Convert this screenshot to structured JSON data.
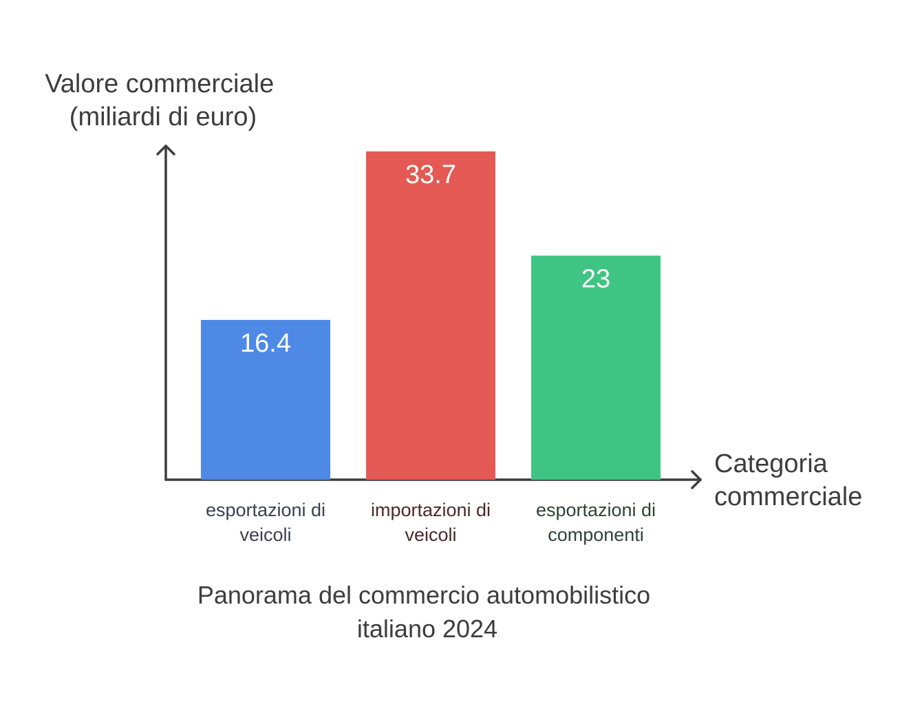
{
  "chart_data": {
    "type": "bar",
    "title": "Panorama del commercio automobilistico italiano 2024",
    "ylabel": "Valore commerciale (miliardi di euro)",
    "xlabel": "Categoria commerciale",
    "categories": [
      "esportazioni di veicoli",
      "importazioni di veicoli",
      "esportazioni di componenti"
    ],
    "values": [
      16.4,
      33.7,
      23
    ],
    "value_labels": [
      "16.4",
      "33.7",
      "23"
    ],
    "colors": [
      "#4e89e6",
      "#e45954",
      "#3ec583"
    ],
    "label_colors": [
      "#3a4150",
      "#4a2a2a",
      "#2f4338"
    ],
    "ylim": [
      0,
      33.7
    ],
    "grid": false,
    "legend": "none"
  }
}
